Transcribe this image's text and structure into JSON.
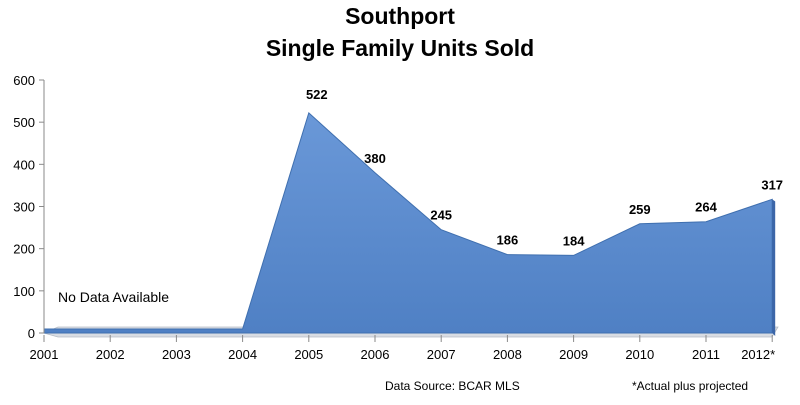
{
  "chart_data": {
    "type": "area",
    "title": "Southport",
    "subtitle": "Single Family Units Sold",
    "categories": [
      "2001",
      "2002",
      "2003",
      "2004",
      "2005",
      "2006",
      "2007",
      "2008",
      "2009",
      "2010",
      "2011",
      "2012*"
    ],
    "values": [
      null,
      null,
      null,
      null,
      522,
      380,
      245,
      186,
      184,
      259,
      264,
      317
    ],
    "data_labels": [
      "",
      "",
      "",
      "",
      "522",
      "380",
      "245",
      "186",
      "184",
      "259",
      "264",
      "317"
    ],
    "yticks": [
      "0",
      "100",
      "200",
      "300",
      "400",
      "500",
      "600"
    ],
    "ylim": [
      0,
      600
    ],
    "grid": false,
    "legend": "none",
    "annotation": "No Data Available",
    "color": "#5b8cd0"
  },
  "footer": {
    "source": "Data Source: BCAR MLS",
    "note": "*Actual plus projected"
  }
}
